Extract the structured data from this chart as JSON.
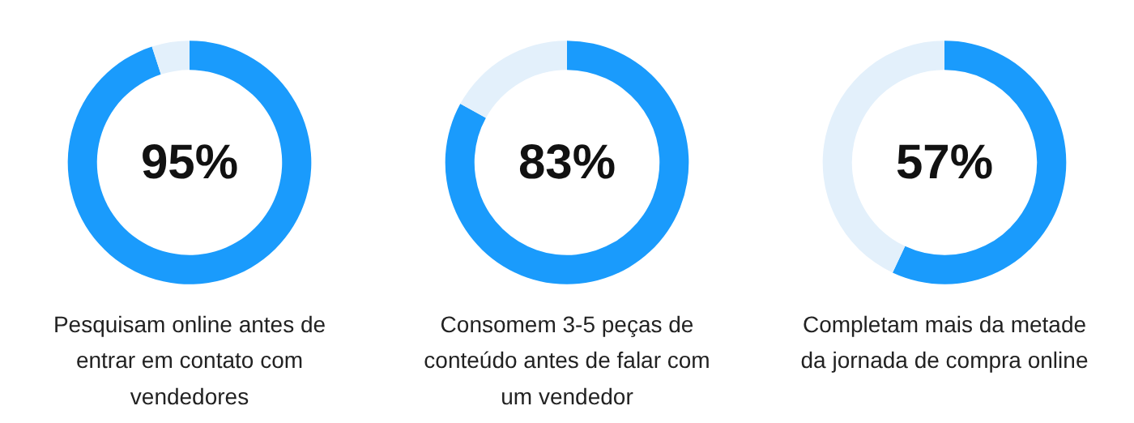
{
  "chart_data": [
    {
      "type": "donut",
      "categories": [
        null,
        null
      ],
      "values": [
        95,
        5
      ],
      "colors": [
        "#1a9bfc",
        "#e3f0fb"
      ],
      "value_labels": [
        "95%",
        null
      ],
      "annotations": [
        "Pesquisam online antes de",
        "entrar em contato com",
        "vendedores"
      ]
    },
    {
      "type": "donut",
      "categories": [
        null,
        null
      ],
      "values": [
        83,
        17
      ],
      "colors": [
        "#1a9bfc",
        "#e3f0fb"
      ],
      "value_labels": [
        "83%",
        null
      ],
      "annotations": [
        "Consomem 3-5 peças de",
        "conteúdo antes de falar com",
        "um vendedor"
      ]
    },
    {
      "type": "donut",
      "categories": [
        null,
        null
      ],
      "values": [
        57,
        43
      ],
      "colors": [
        "#1a9bfc",
        "#e3f0fb"
      ],
      "value_labels": [
        "57%",
        null
      ],
      "annotations": [
        "Completam mais da metade",
        "da jornada de compra online"
      ]
    }
  ]
}
